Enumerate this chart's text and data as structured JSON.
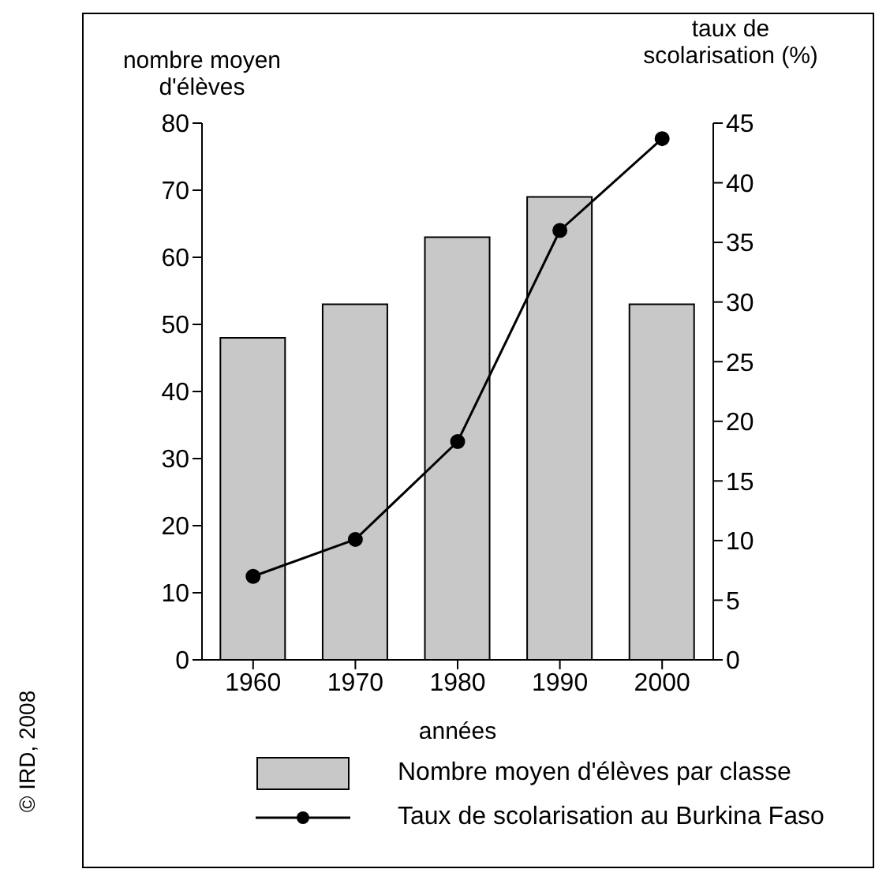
{
  "chart_data": {
    "type": "bar",
    "categories": [
      "1960",
      "1970",
      "1980",
      "1990",
      "2000"
    ],
    "xlabel": "années",
    "ylabel": "nombre moyen d'élèves",
    "y2label": "taux de scolarisation (%)",
    "series": [
      {
        "name": "Nombre moyen d'élèves par classe",
        "color": "#c8c8c8",
        "values": [
          48,
          53,
          63,
          69,
          53
        ]
      },
      {
        "name": "Taux de scolarisation au Burkina Faso",
        "type": "line",
        "axis": "y2",
        "color": "#000000",
        "values": [
          7,
          10.1,
          18.3,
          36,
          43.7
        ]
      }
    ],
    "ylim": [
      0,
      80
    ],
    "yticks": [
      0,
      10,
      20,
      30,
      40,
      50,
      60,
      70,
      80
    ],
    "y2lim": [
      0,
      45
    ],
    "y2ticks": [
      0,
      5,
      10,
      15,
      20,
      25,
      30,
      35,
      40,
      45
    ],
    "marker": "circle",
    "legend": "bottom",
    "annotations": [
      "© IRD, 2008"
    ]
  }
}
